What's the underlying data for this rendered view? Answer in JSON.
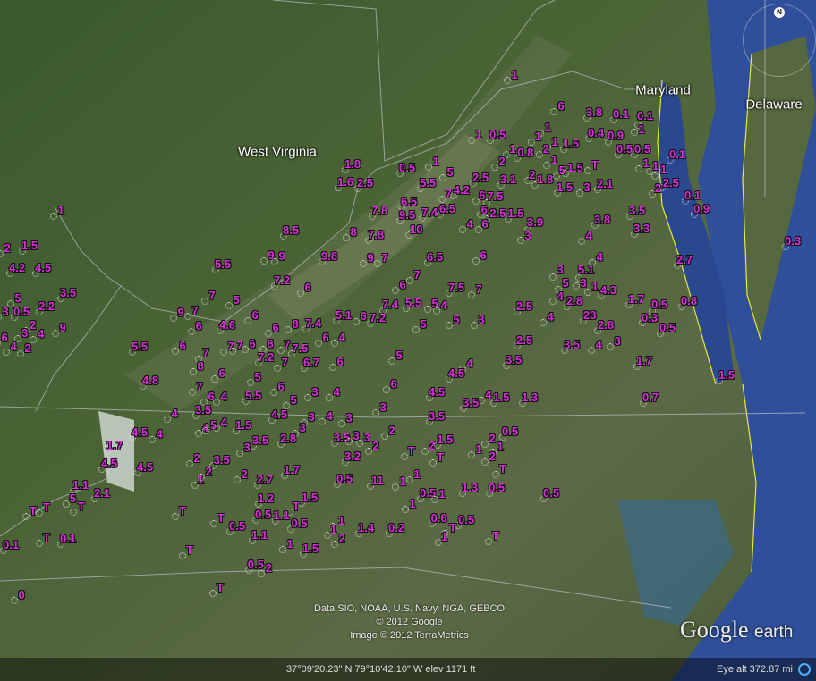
{
  "state_labels": {
    "west_virginia": "West Virginia",
    "maryland": "Maryland",
    "delaware": "Delaware"
  },
  "compass": {
    "north": "N"
  },
  "attribution": {
    "line1": "Data SIO, NOAA, U.S. Navy, NGA, GEBCO",
    "line2": "© 2012 Google",
    "line3": "Image © 2012 TerraMetrics"
  },
  "status_bar": {
    "coordinates": "37°09'20.23\" N  79°10'42.10\" W  elev  1171 ft",
    "eye_alt": "Eye alt   372.87 mi"
  },
  "logo": {
    "brand": "Google",
    "product": "earth"
  },
  "colors": {
    "label": "#d92ed9",
    "ocean": "#2f4f9a",
    "coastline": "#e8e83a"
  },
  "labels": [
    "1",
    "6",
    "3.8",
    "0.1",
    "0.1",
    "1",
    "0.5",
    "1",
    "1",
    "1",
    "2",
    "1",
    "1.5",
    "0.4",
    "0.9",
    "0.5",
    "0.5",
    "1",
    "0.1",
    "1",
    "1",
    "1",
    "1",
    "0.8",
    "2",
    "2.5",
    "3.1",
    "2",
    "1.8",
    "5",
    "1.5",
    "T",
    "1.5",
    "3",
    "2.1",
    "2",
    "2.5",
    "0.1",
    "0.9",
    "4.2",
    "6",
    "7.5",
    "6",
    "2.5",
    "1.5",
    "4",
    "6",
    "3.9",
    "3",
    "3.5",
    "3.8",
    "3.3",
    "4",
    "0.3",
    "1.8",
    "1.6",
    "2.5",
    "0.5",
    "1",
    "5",
    "5.5",
    "7",
    "6.5",
    "7.8",
    "9.5",
    "7.4",
    "6.5",
    "10",
    "8",
    "7.8",
    "8.5",
    "9",
    "9",
    "9.8",
    "9",
    "7",
    "6.5",
    "6",
    "5.5",
    "7.2",
    "6",
    "7",
    "6",
    "7.5",
    "7",
    "4",
    "3",
    "5.1",
    "5",
    "3",
    "1",
    "4.3",
    "4",
    "2.8",
    "1.7",
    "0.5",
    "0.8",
    "0.3",
    "0.5",
    "23",
    "2.8",
    "3.5",
    "4",
    "3",
    "2.7",
    "1.7",
    "1.5",
    "0.7",
    "2.5",
    "4",
    "2.5",
    "3.5",
    "1.5",
    "1.3",
    "4",
    "3.5",
    "1",
    "2",
    "1.5",
    "4.2",
    "4.5",
    "5",
    "3.5",
    "3",
    "0.5",
    "2.2",
    "2",
    "9",
    "6",
    "3",
    "4",
    "4",
    "2",
    "9",
    "7",
    "7",
    "5",
    "6",
    "4.6",
    "6",
    "5.5",
    "6",
    "6",
    "8",
    "7.4",
    "5.1",
    "6",
    "7.2",
    "7.4",
    "5.5",
    "5",
    "4",
    "5",
    "5",
    "3",
    "7",
    "7",
    "6",
    "8",
    "7",
    "7.5",
    "6",
    "4",
    "7",
    "7.2",
    "7",
    "6.7",
    "6",
    "8",
    "6",
    "5",
    "6",
    "3",
    "4",
    "7",
    "6",
    "4",
    "5.5",
    "5",
    "5",
    "4",
    "4.5",
    "6",
    "4.5",
    "4.8",
    "4",
    "3.5",
    "4.5",
    "3",
    "4",
    "3",
    "3",
    "3.5",
    "4.5",
    "4",
    "4",
    "5",
    "4",
    "1.5",
    "3",
    "3.5",
    "3",
    "2.8",
    "3.5",
    "3",
    "3",
    "2",
    "2",
    "3.2",
    "T",
    "2",
    "1.5",
    "T",
    "1",
    "2",
    "1",
    "2",
    "0.5",
    "T",
    "1.7",
    "4.5",
    "4.5",
    "2",
    "3.5",
    "1",
    "2",
    "2",
    "2.7",
    "1.7",
    "0.5",
    "11",
    "1",
    "1",
    "0.5",
    "1",
    "1",
    "1.3",
    "0.5",
    "0.5",
    "1.1",
    "2.1",
    "5",
    "T",
    "T",
    "T",
    "T",
    "1.2",
    "1.5",
    "T",
    "0.5",
    "1.1",
    "T",
    "0.5",
    "0.5",
    "1.1",
    "1",
    "1",
    "2",
    "1.4",
    "0.2",
    "0.6",
    "0.5",
    "T",
    "1",
    "T",
    "1",
    "1.5",
    "T",
    "0.1",
    "0.1",
    "T",
    "0.5",
    "2",
    "T",
    "0"
  ]
}
